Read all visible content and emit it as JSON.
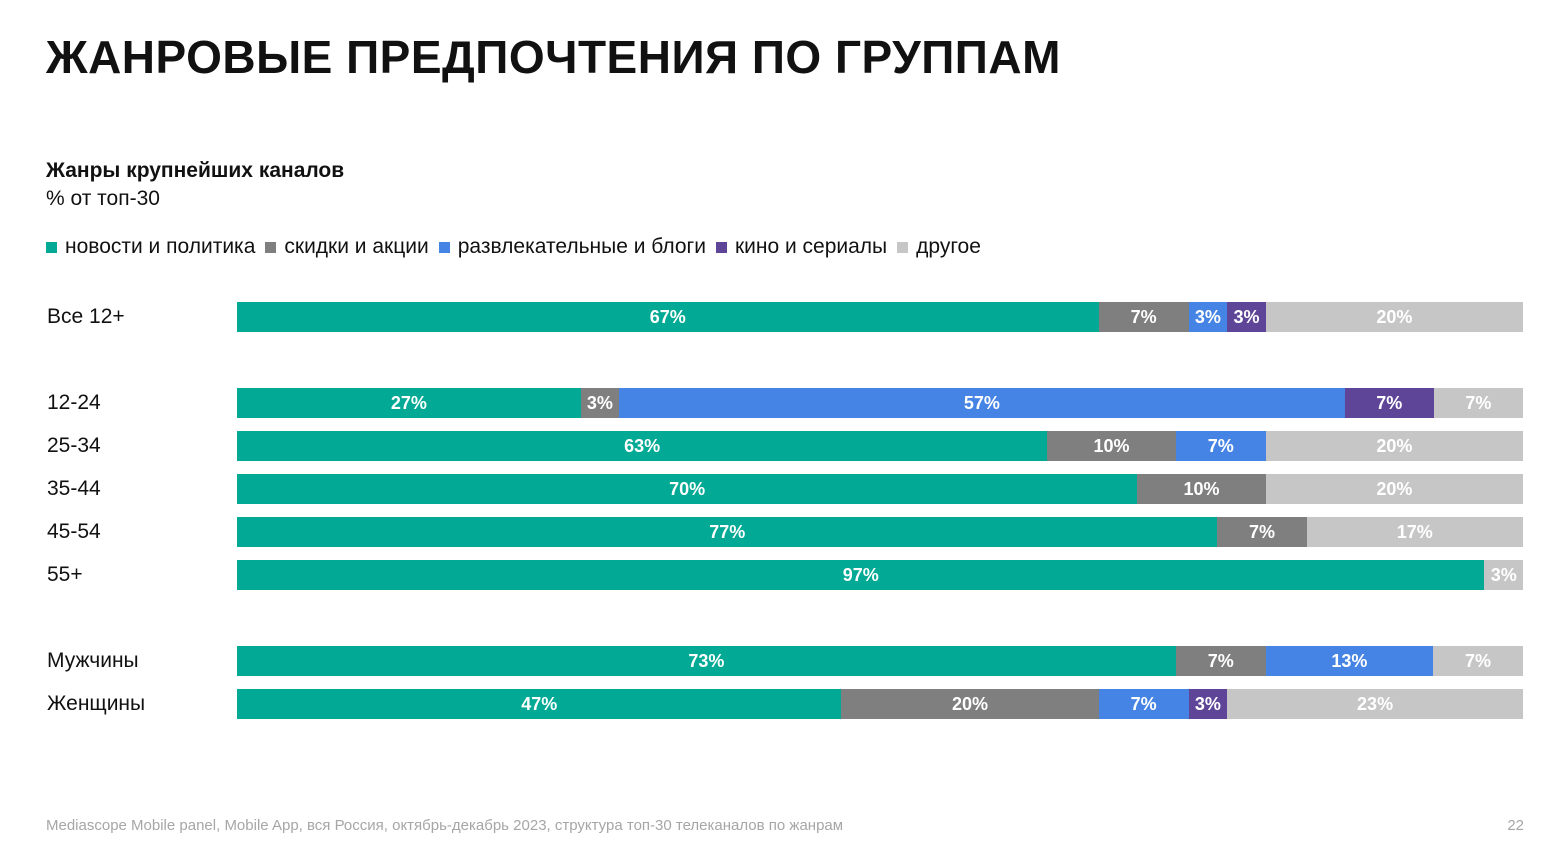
{
  "title": "ЖАНРОВЫЕ ПРЕДПОЧТЕНИЯ ПО ГРУППАМ",
  "footer": "Mediascope Mobile panel, Mobile App, вся Россия, октябрь-декабрь 2023, структура топ-30 телеканалов по жанрам",
  "page_number": "22",
  "chart_data": {
    "type": "bar",
    "orientation": "horizontal",
    "stacked": true,
    "title": "Жанры крупнейших каналов",
    "unit_label": "% от топ-30",
    "legend_position": "top-left",
    "grid": false,
    "series": [
      {
        "name": "новости и политика",
        "color": "#02A994"
      },
      {
        "name": "скидки и акции",
        "color": "#7F7F7F"
      },
      {
        "name": "развлекательные и блоги",
        "color": "#4584E4"
      },
      {
        "name": "кино и сериалы",
        "color": "#5F4597"
      },
      {
        "name": "другое",
        "color": "#C6C6C6"
      }
    ],
    "categories": [
      "Все 12+",
      "12-24",
      "25-34",
      "35-44",
      "45-54",
      "55+",
      "Мужчины",
      "Женщины"
    ],
    "values": [
      [
        67,
        7,
        3,
        3,
        20
      ],
      [
        27,
        3,
        57,
        7,
        7
      ],
      [
        63,
        10,
        7,
        0,
        20
      ],
      [
        70,
        10,
        0,
        0,
        20
      ],
      [
        77,
        7,
        0,
        0,
        17
      ],
      [
        97,
        0,
        0,
        0,
        3
      ],
      [
        73,
        7,
        13,
        0,
        7
      ],
      [
        47,
        20,
        7,
        3,
        23
      ]
    ]
  }
}
